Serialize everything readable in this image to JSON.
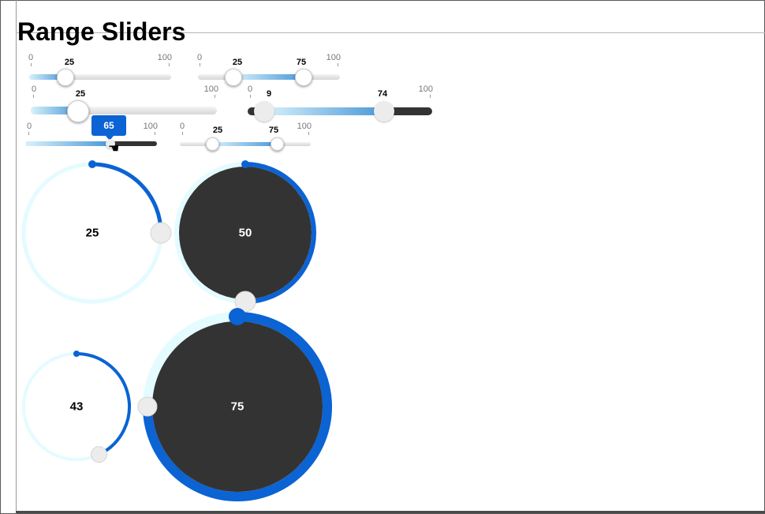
{
  "page": {
    "title": "Range Sliders"
  },
  "colors": {
    "accent": "#0b63d4",
    "dark": "#333333",
    "ring": "#e4fbff",
    "handle": "#ececec"
  },
  "sliders": [
    {
      "id": "s1",
      "min": "0",
      "max": "100",
      "value": "25",
      "value_fraction": 0.25
    },
    {
      "id": "s2",
      "min": "0",
      "max": "100",
      "low": "25",
      "high": "75",
      "low_fraction": 0.25,
      "high_fraction": 0.75
    },
    {
      "id": "s3",
      "min": "0",
      "max": "100",
      "value": "25",
      "value_fraction": 0.25
    },
    {
      "id": "s4",
      "min": "0",
      "max": "100",
      "low": "9",
      "high": "74",
      "low_fraction": 0.09,
      "high_fraction": 0.74
    },
    {
      "id": "s5",
      "min": "0",
      "max": "100",
      "value": "65",
      "value_fraction": 0.65,
      "tooltip": "65",
      "cursor": "hand-cursor-icon"
    },
    {
      "id": "s6",
      "min": "0",
      "max": "100",
      "low": "25",
      "high": "75",
      "low_fraction": 0.25,
      "high_fraction": 0.75
    }
  ],
  "round_sliders": [
    {
      "id": "r1",
      "value": "25",
      "value_fraction": 0.25,
      "style": "light"
    },
    {
      "id": "r2",
      "value": "50",
      "value_fraction": 0.5,
      "style": "dark"
    },
    {
      "id": "r3",
      "value": "43",
      "value_fraction": 0.43,
      "style": "light"
    },
    {
      "id": "r4",
      "value": "75",
      "value_fraction": 0.75,
      "style": "dark"
    }
  ]
}
